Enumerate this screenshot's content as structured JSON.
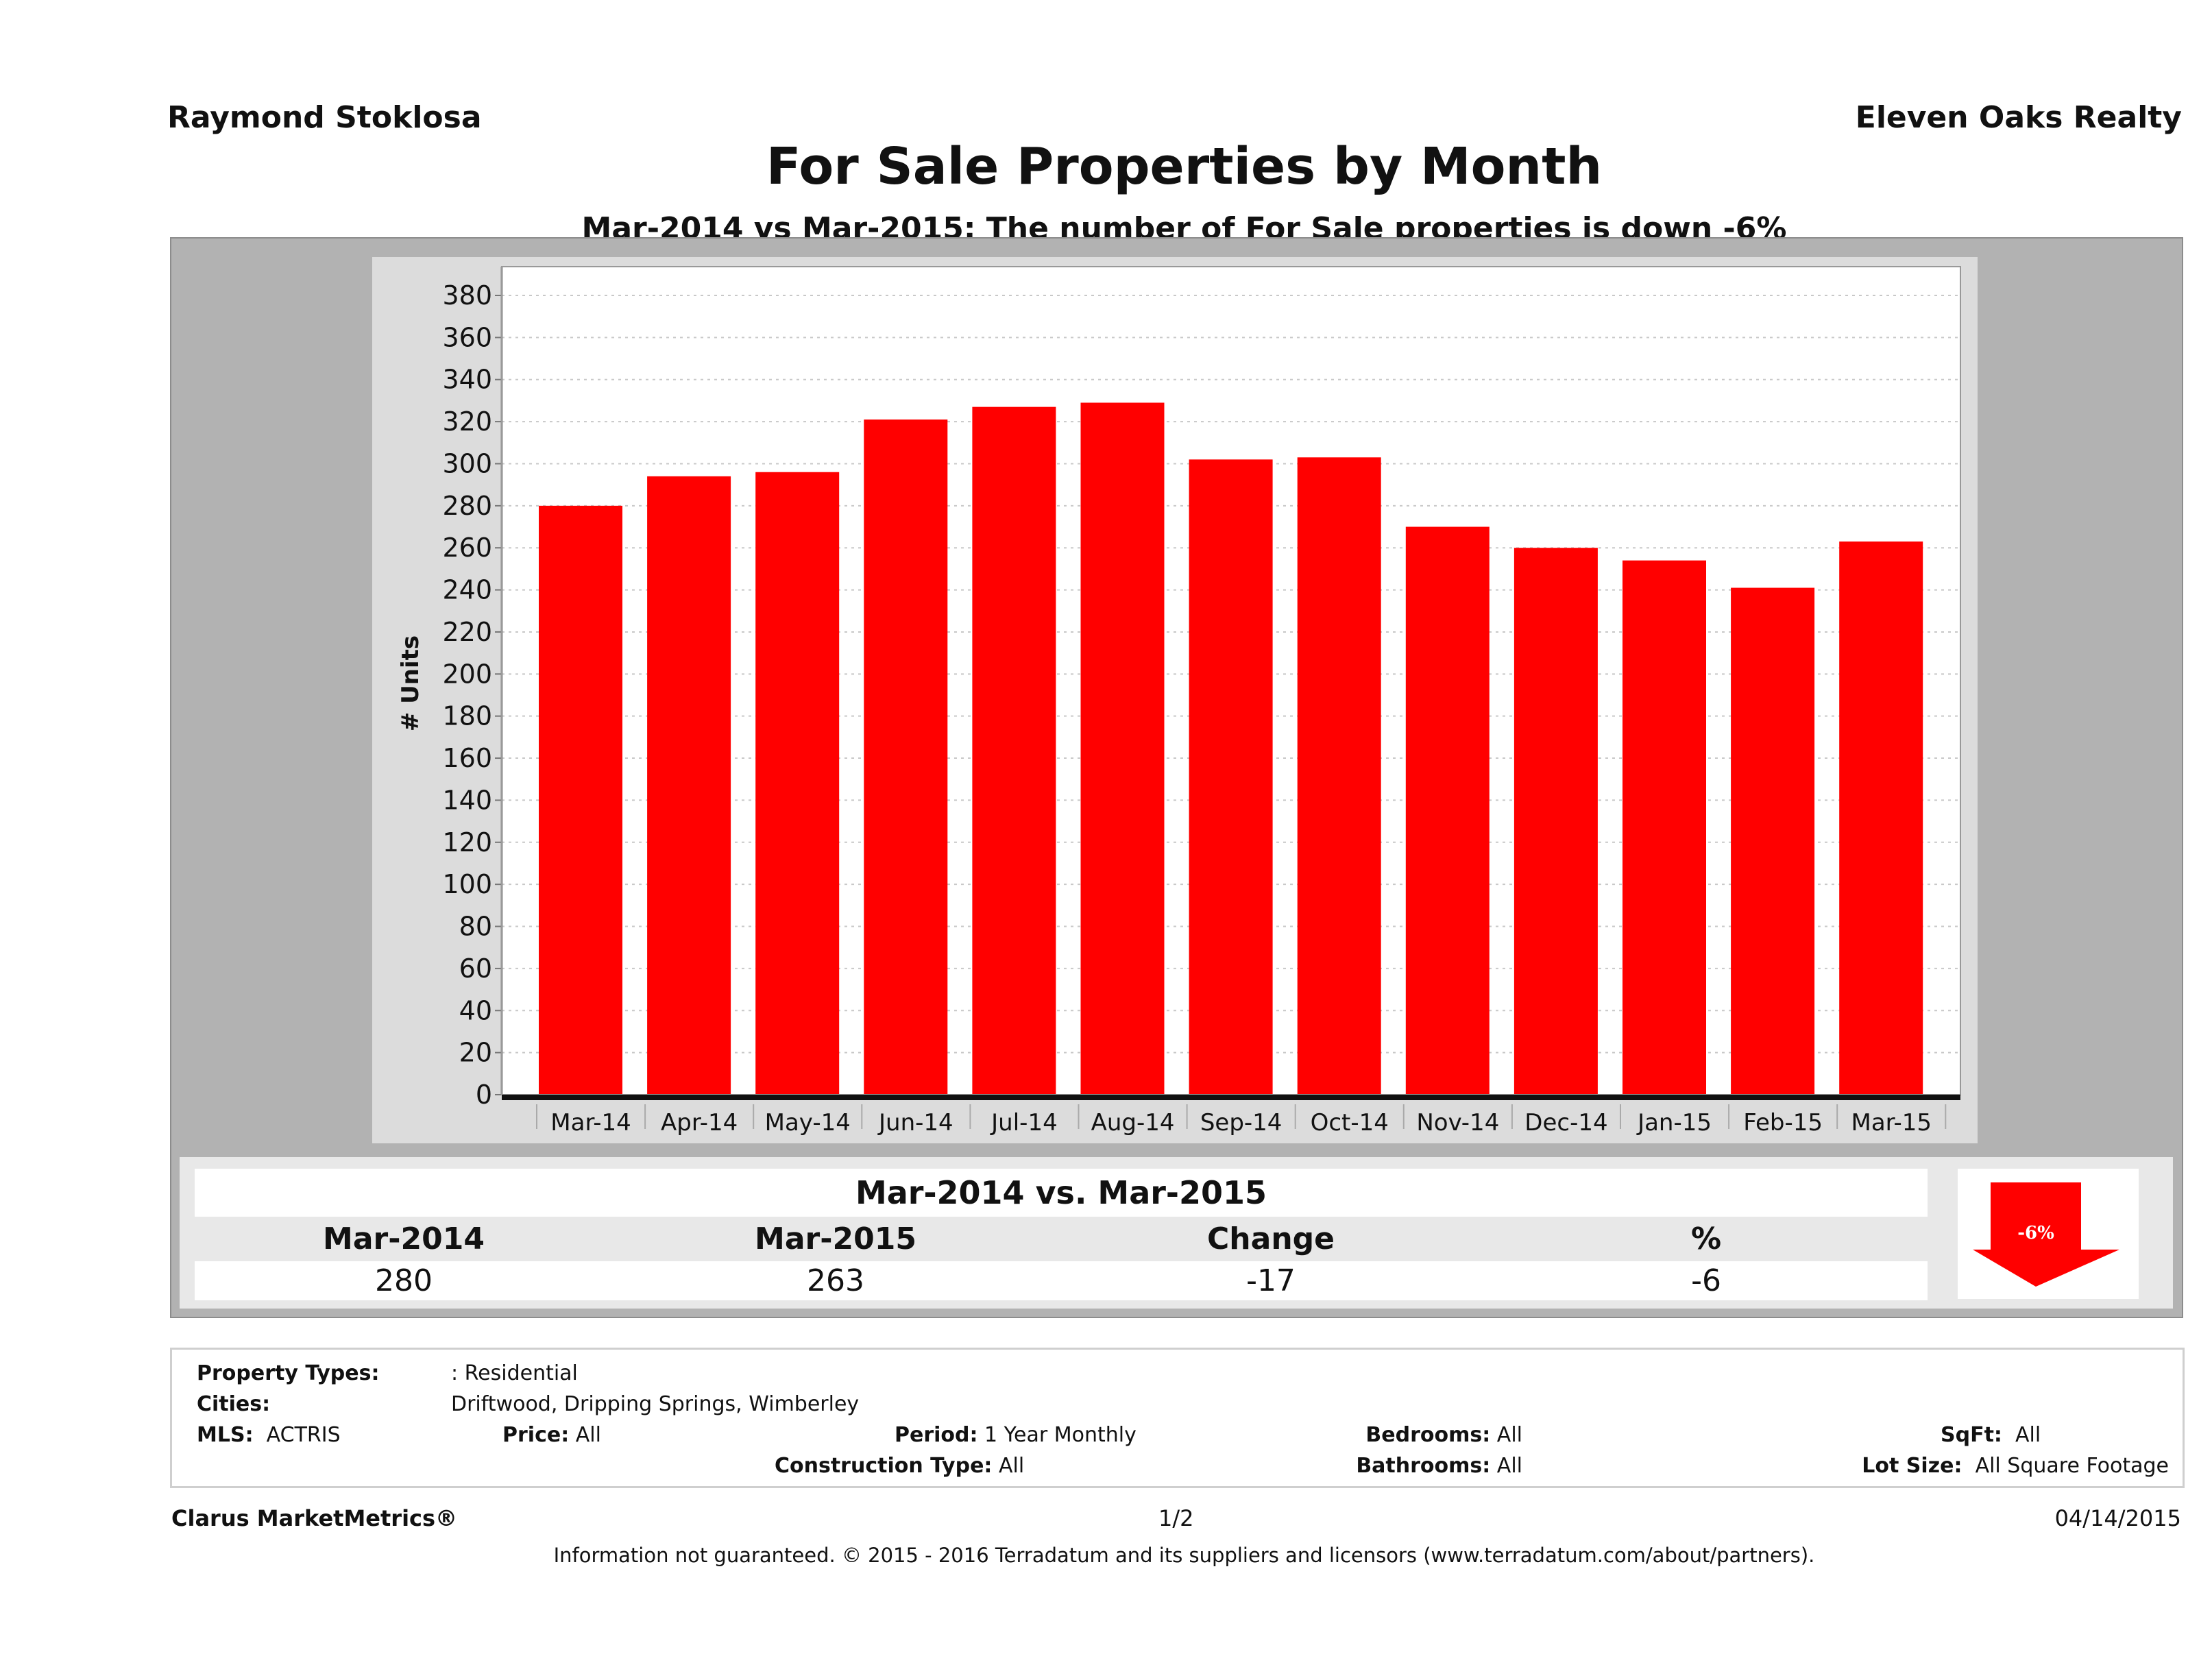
{
  "header": {
    "agent_name": "Raymond Stoklosa",
    "company_name": "Eleven Oaks Realty",
    "title": "For Sale Properties by Month",
    "subtitle": "Mar-2014 vs Mar-2015: The number of For Sale  properties is down -6%"
  },
  "chart_data": {
    "type": "bar",
    "title": "For Sale Properties by Month",
    "xlabel": "",
    "ylabel": "# Units",
    "categories": [
      "Mar-14",
      "Apr-14",
      "May-14",
      "Jun-14",
      "Jul-14",
      "Aug-14",
      "Sep-14",
      "Oct-14",
      "Nov-14",
      "Dec-14",
      "Jan-15",
      "Feb-15",
      "Mar-15"
    ],
    "series": [
      {
        "name": "For Sale",
        "color": "#ff0000",
        "values": [
          280,
          294,
          296,
          321,
          327,
          329,
          302,
          303,
          270,
          260,
          254,
          241,
          263
        ]
      }
    ],
    "ylim": [
      0,
      390
    ],
    "yticks": [
      0,
      20,
      40,
      60,
      80,
      100,
      120,
      140,
      160,
      180,
      200,
      220,
      240,
      260,
      280,
      300,
      320,
      340,
      360,
      380
    ],
    "grid": true,
    "legend": "none"
  },
  "summary": {
    "title": "Mar-2014 vs. Mar-2015",
    "headers": [
      "Mar-2014",
      "Mar-2015",
      "Change",
      "%"
    ],
    "values": [
      "280",
      "263",
      "-17",
      "-6"
    ],
    "badge": {
      "label": "-6%",
      "direction": "down",
      "color": "#ff0000"
    }
  },
  "criteria": {
    "property_types_label": "Property Types:",
    "property_types_value": ": Residential",
    "cities_label": "Cities:",
    "cities_value": "Driftwood, Dripping Springs, Wimberley",
    "mls_label": "MLS:",
    "mls_value": "ACTRIS",
    "price_label": "Price:",
    "price_value": "All",
    "period_label": "Period:",
    "period_value": "1 Year Monthly",
    "construction_label": "Construction Type:",
    "construction_value": "All",
    "bedrooms_label": "Bedrooms:",
    "bedrooms_value": "All",
    "bathrooms_label": "Bathrooms:",
    "bathrooms_value": "All",
    "sqft_label": "SqFt:",
    "sqft_value": "All",
    "lotsize_label": "Lot Size:",
    "lotsize_value": "All Square Footage"
  },
  "footer": {
    "brand": "Clarus MarketMetrics®",
    "page": "1/2",
    "date": "04/14/2015",
    "disclaimer": "Information not guaranteed. © 2015 - 2016 Terradatum and its suppliers and licensors (www.terradatum.com/about/partners)."
  }
}
